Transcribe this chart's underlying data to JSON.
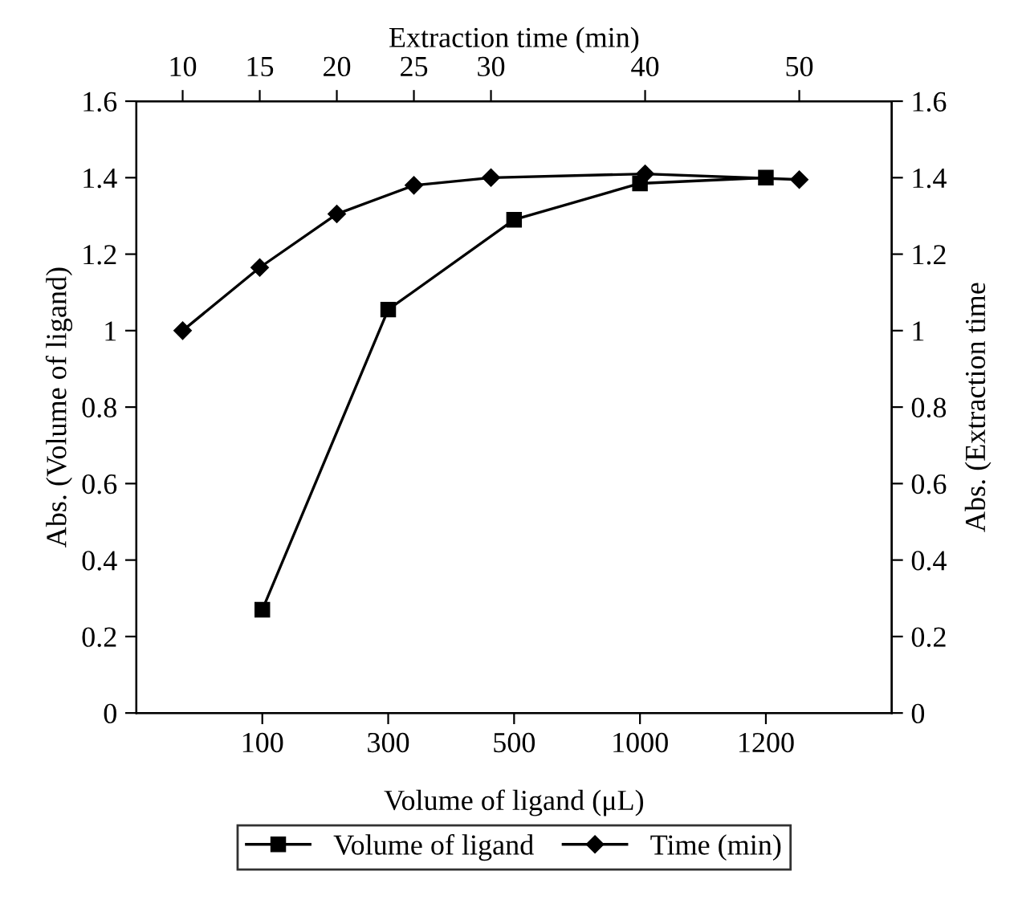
{
  "chart_data": {
    "type": "line",
    "xlabel": "Volume of ligand (μL)",
    "x2label": "Extraction time (min)",
    "ylabel": "Abs. (Volume of ligand)",
    "y2label": "Abs. (Extraction time",
    "categories": [
      "100",
      "300",
      "500",
      "1000",
      "1200"
    ],
    "x2lim": [
      7,
      56
    ],
    "x2ticks": [
      10,
      15,
      20,
      25,
      30,
      40,
      50
    ],
    "series": [
      {
        "name": "Volume of ligand",
        "color": "#000000",
        "marker": "square",
        "values": [
          0.27,
          1.055,
          1.29,
          1.385,
          1.4
        ]
      },
      {
        "name": "Time (min)",
        "color": "#000000",
        "marker": "diamond",
        "axis": "x2",
        "x": [
          10,
          15,
          20,
          25,
          30,
          40,
          50
        ],
        "values": [
          1.0,
          1.165,
          1.305,
          1.38,
          1.4,
          1.41,
          1.395
        ]
      }
    ],
    "ylim": [
      0,
      1.6
    ],
    "yticks": [
      0,
      0.2,
      0.4,
      0.6,
      0.8,
      1,
      1.2,
      1.4,
      1.6
    ],
    "y2lim": [
      0,
      1.6
    ],
    "y2ticks": [
      0,
      0.2,
      0.4,
      0.6,
      0.8,
      1,
      1.2,
      1.4,
      1.6
    ],
    "grid": false,
    "legend": "bottom",
    "line_style": "solid"
  }
}
